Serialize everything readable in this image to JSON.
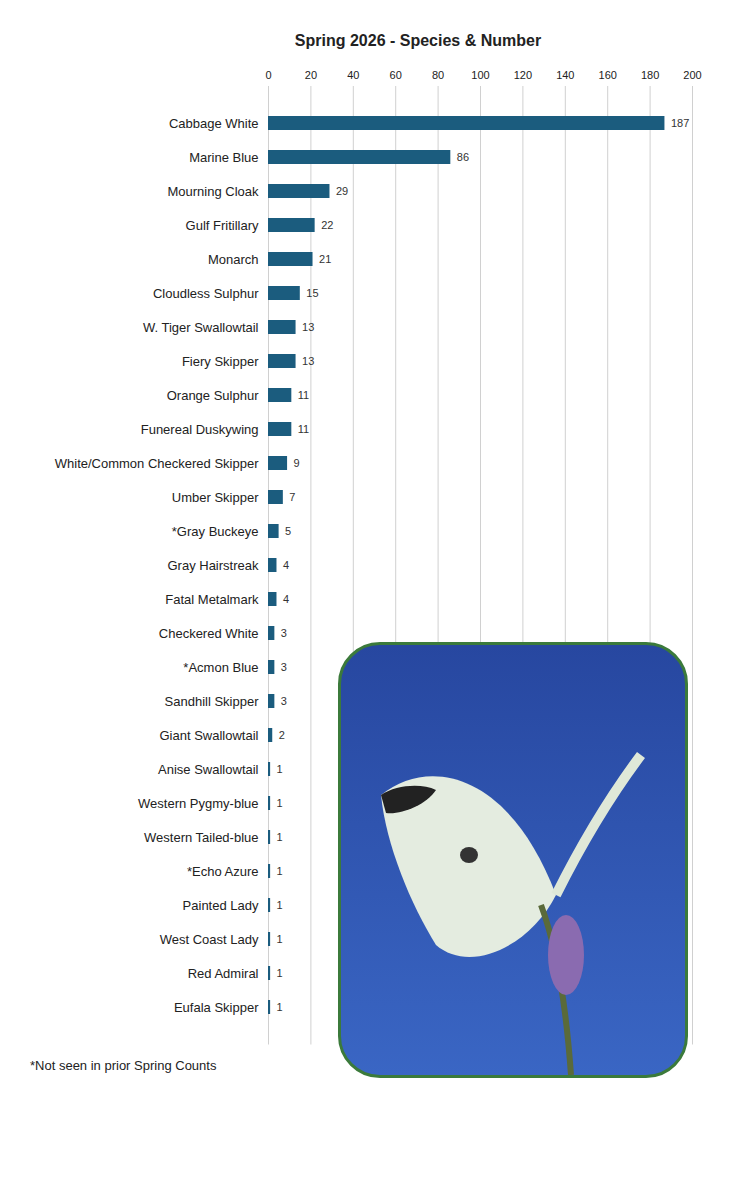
{
  "chart_data": {
    "type": "bar",
    "orientation": "horizontal",
    "title": "Spring 2026 - Species & Number",
    "caption": "*Not seen in prior Spring Counts",
    "categories": [
      "Cabbage White",
      "Marine Blue",
      "Mourning Cloak",
      "Gulf Fritillary",
      "Monarch",
      "Cloudless Sulphur",
      "W. Tiger Swallowtail",
      "Fiery Skipper",
      "Orange Sulphur",
      "Funereal Duskywing",
      "White/Common Checkered Skipper",
      "Umber Skipper",
      "*Gray Buckeye",
      "Gray Hairstreak",
      "Fatal Metalmark",
      "Checkered White",
      "*Acmon Blue",
      "Sandhill Skipper",
      "Giant Swallowtail",
      "Anise Swallowtail",
      "Western Pygmy-blue",
      "Western Tailed-blue",
      "*Echo Azure",
      "Painted Lady",
      "West Coast Lady",
      "Red Admiral",
      "Eufala Skipper"
    ],
    "values": [
      187,
      86,
      29,
      22,
      21,
      15,
      13,
      13,
      11,
      11,
      9,
      7,
      5,
      4,
      4,
      3,
      3,
      3,
      2,
      1,
      1,
      1,
      1,
      1,
      1,
      1,
      1
    ],
    "color": "#1b5c7e",
    "xlim": [
      0,
      200
    ],
    "xticks": [
      0,
      20,
      40,
      60,
      80,
      100,
      120,
      140,
      160,
      180,
      200
    ],
    "grid": true,
    "data_labels": true
  }
}
